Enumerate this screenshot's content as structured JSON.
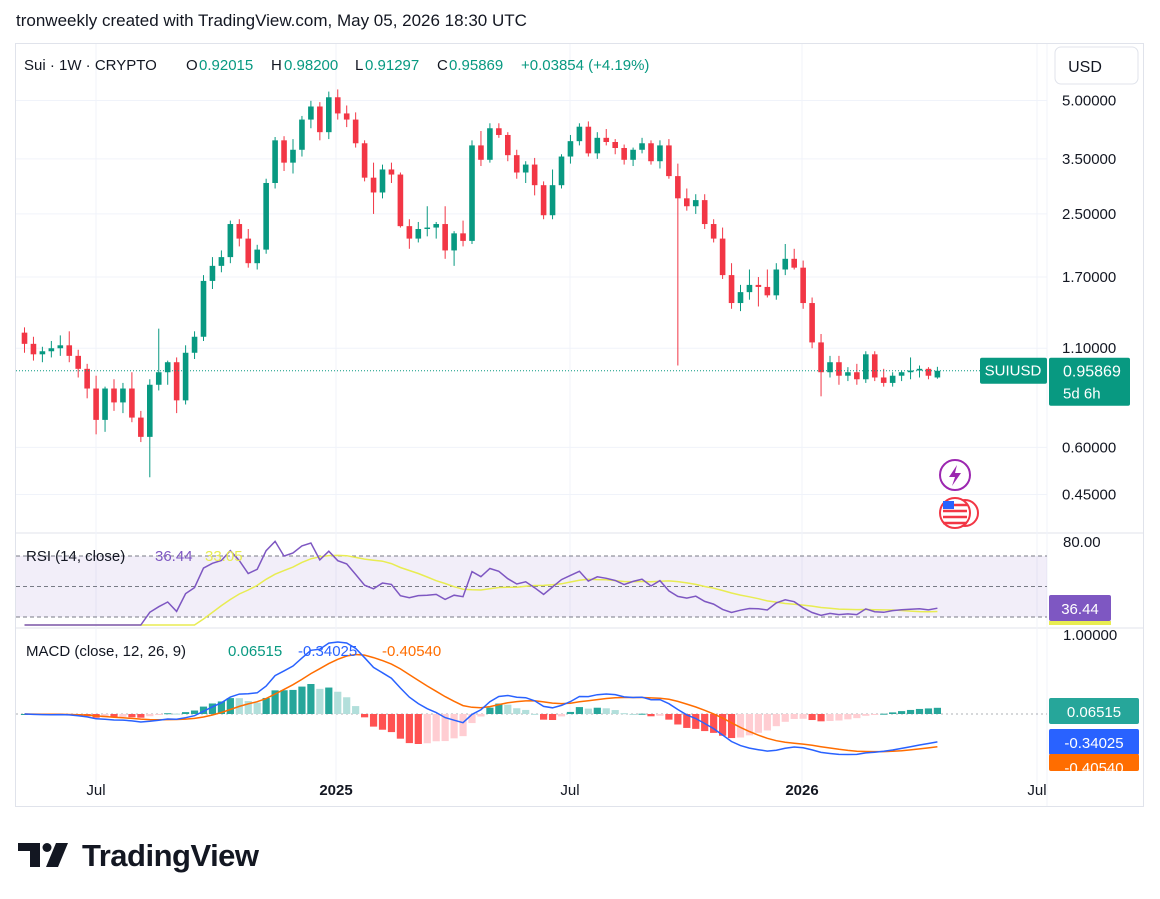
{
  "caption": "tronweekly created with TradingView.com, May 05, 2026 18:30 UTC",
  "header": {
    "symbol": "Sui · 1W · CRYPTO",
    "o_label": "O",
    "o_value": "0.92015",
    "h_label": "H",
    "h_value": "0.98200",
    "l_label": "L",
    "l_value": "0.91297",
    "c_label": "C",
    "c_value": "0.95869",
    "change": "+0.03854 (+4.19%)"
  },
  "currency_button": "USD",
  "price_axis": {
    "labels": [
      "5.00000",
      "3.50000",
      "2.50000",
      "1.70000",
      "1.10000",
      "0.60000",
      "0.45000"
    ],
    "values": [
      5.0,
      3.5,
      2.5,
      1.7,
      1.1,
      0.6,
      0.45
    ],
    "scale": "log"
  },
  "last_price_tag": {
    "symbol": "SUIUSD",
    "price": "0.95869",
    "countdown": "5d 6h"
  },
  "time_axis": [
    "Jul",
    "2025",
    "Jul",
    "2026",
    "Jul"
  ],
  "rsi": {
    "label": "RSI (14, close)",
    "value": "36.44",
    "ma_value": "33.05",
    "axis_label": "80.00",
    "tag": "36.44"
  },
  "macd": {
    "label": "MACD (close, 12, 26, 9)",
    "hist_value": "0.06515",
    "macd_value": "-0.34025",
    "signal_value": "-0.40540",
    "axis_label": "1.00000",
    "tags": [
      "0.06515",
      "-0.34025",
      "-0.40540"
    ]
  },
  "colors": {
    "up": "#089981",
    "down": "#f23645",
    "rsi_line": "#7e57c2",
    "rsi_ma": "#e8ec52",
    "macd_line": "#2962ff",
    "signal_line": "#ff6d00",
    "last_price": "#089981"
  },
  "icons": [
    "lightning-icon",
    "us-flag-icon"
  ],
  "brand": "TradingView",
  "chart_data": {
    "type": "candlestick",
    "title": "Sui · 1W · CRYPTO",
    "interval": "1W",
    "y_scale": "log",
    "x_start": "2024-04-29",
    "candles": [
      [
        1.21,
        1.25,
        1.07,
        1.13
      ],
      [
        1.13,
        1.18,
        1.02,
        1.06
      ],
      [
        1.06,
        1.11,
        1.01,
        1.08
      ],
      [
        1.08,
        1.15,
        1.04,
        1.1
      ],
      [
        1.1,
        1.19,
        1.05,
        1.12
      ],
      [
        1.12,
        1.22,
        1.01,
        1.05
      ],
      [
        1.05,
        1.09,
        0.92,
        0.97
      ],
      [
        0.97,
        1.0,
        0.81,
        0.86
      ],
      [
        0.86,
        0.93,
        0.65,
        0.71
      ],
      [
        0.71,
        0.87,
        0.66,
        0.86
      ],
      [
        0.86,
        0.91,
        0.75,
        0.79
      ],
      [
        0.79,
        0.89,
        0.74,
        0.86
      ],
      [
        0.86,
        0.95,
        0.7,
        0.72
      ],
      [
        0.72,
        0.75,
        0.62,
        0.64
      ],
      [
        0.64,
        0.91,
        0.5,
        0.88
      ],
      [
        0.88,
        1.24,
        0.85,
        0.95
      ],
      [
        0.95,
        1.02,
        0.88,
        1.01
      ],
      [
        1.01,
        1.04,
        0.74,
        0.8
      ],
      [
        0.8,
        1.12,
        0.78,
        1.07
      ],
      [
        1.07,
        1.22,
        1.03,
        1.18
      ],
      [
        1.18,
        1.72,
        1.15,
        1.66
      ],
      [
        1.66,
        1.92,
        1.58,
        1.82
      ],
      [
        1.82,
        2.0,
        1.75,
        1.92
      ],
      [
        1.92,
        2.4,
        1.85,
        2.35
      ],
      [
        2.35,
        2.42,
        2.05,
        2.15
      ],
      [
        2.15,
        2.28,
        1.8,
        1.85
      ],
      [
        1.85,
        2.07,
        1.78,
        2.01
      ],
      [
        2.01,
        3.1,
        1.96,
        3.02
      ],
      [
        3.02,
        4.0,
        2.92,
        3.92
      ],
      [
        3.92,
        4.02,
        3.25,
        3.42
      ],
      [
        3.42,
        3.95,
        3.2,
        3.7
      ],
      [
        3.7,
        4.55,
        3.55,
        4.45
      ],
      [
        4.45,
        4.99,
        4.22,
        4.82
      ],
      [
        4.82,
        4.95,
        3.92,
        4.12
      ],
      [
        4.12,
        5.28,
        3.95,
        5.1
      ],
      [
        5.1,
        5.35,
        4.45,
        4.62
      ],
      [
        4.62,
        4.85,
        4.25,
        4.45
      ],
      [
        4.45,
        4.65,
        3.75,
        3.85
      ],
      [
        3.85,
        3.92,
        3.05,
        3.12
      ],
      [
        3.12,
        3.42,
        2.5,
        2.85
      ],
      [
        2.85,
        3.38,
        2.75,
        3.28
      ],
      [
        3.28,
        3.42,
        3.02,
        3.18
      ],
      [
        3.18,
        3.22,
        2.3,
        2.32
      ],
      [
        2.32,
        2.42,
        2.02,
        2.15
      ],
      [
        2.15,
        2.38,
        2.1,
        2.28
      ],
      [
        2.28,
        2.62,
        2.18,
        2.3
      ],
      [
        2.3,
        2.38,
        2.15,
        2.35
      ],
      [
        2.35,
        2.62,
        1.9,
        2.0
      ],
      [
        2.0,
        2.25,
        1.82,
        2.22
      ],
      [
        2.22,
        2.4,
        2.05,
        2.12
      ],
      [
        2.12,
        3.92,
        2.08,
        3.8
      ],
      [
        3.8,
        4.15,
        3.35,
        3.48
      ],
      [
        3.48,
        4.35,
        3.42,
        4.22
      ],
      [
        4.22,
        4.35,
        3.98,
        4.05
      ],
      [
        4.05,
        4.12,
        3.45,
        3.58
      ],
      [
        3.58,
        3.7,
        3.1,
        3.22
      ],
      [
        3.22,
        3.45,
        3.02,
        3.38
      ],
      [
        3.38,
        3.52,
        2.8,
        2.98
      ],
      [
        2.98,
        3.05,
        2.42,
        2.48
      ],
      [
        2.48,
        3.28,
        2.42,
        2.98
      ],
      [
        2.98,
        3.6,
        2.92,
        3.55
      ],
      [
        3.55,
        4.05,
        3.4,
        3.9
      ],
      [
        3.9,
        4.35,
        3.8,
        4.26
      ],
      [
        4.26,
        4.4,
        3.55,
        3.62
      ],
      [
        3.62,
        4.12,
        3.5,
        3.98
      ],
      [
        3.98,
        4.2,
        3.8,
        3.88
      ],
      [
        3.88,
        3.95,
        3.6,
        3.74
      ],
      [
        3.74,
        3.82,
        3.38,
        3.48
      ],
      [
        3.48,
        3.75,
        3.35,
        3.7
      ],
      [
        3.7,
        3.98,
        3.62,
        3.85
      ],
      [
        3.85,
        3.92,
        3.38,
        3.45
      ],
      [
        3.45,
        3.92,
        3.3,
        3.8
      ],
      [
        3.8,
        3.95,
        3.1,
        3.15
      ],
      [
        3.15,
        3.4,
        0.99,
        2.75
      ],
      [
        2.75,
        2.92,
        2.55,
        2.62
      ],
      [
        2.62,
        2.82,
        2.5,
        2.72
      ],
      [
        2.72,
        2.82,
        2.28,
        2.35
      ],
      [
        2.35,
        2.42,
        2.1,
        2.15
      ],
      [
        2.15,
        2.3,
        1.68,
        1.72
      ],
      [
        1.72,
        1.85,
        1.4,
        1.45
      ],
      [
        1.45,
        1.62,
        1.38,
        1.55
      ],
      [
        1.55,
        1.78,
        1.48,
        1.62
      ],
      [
        1.62,
        1.7,
        1.42,
        1.6
      ],
      [
        1.6,
        1.78,
        1.5,
        1.52
      ],
      [
        1.52,
        1.85,
        1.48,
        1.78
      ],
      [
        1.78,
        2.08,
        1.72,
        1.9
      ],
      [
        1.9,
        2.02,
        1.78,
        1.8
      ],
      [
        1.8,
        1.88,
        1.4,
        1.45
      ],
      [
        1.45,
        1.5,
        1.1,
        1.14
      ],
      [
        1.14,
        1.2,
        0.82,
        0.95
      ],
      [
        0.95,
        1.05,
        0.92,
        1.01
      ],
      [
        1.01,
        1.05,
        0.88,
        0.93
      ],
      [
        0.93,
        0.98,
        0.9,
        0.95
      ],
      [
        0.95,
        1.0,
        0.88,
        0.91
      ],
      [
        0.91,
        1.08,
        0.89,
        1.06
      ],
      [
        1.06,
        1.08,
        0.9,
        0.92
      ],
      [
        0.92,
        0.97,
        0.87,
        0.89
      ],
      [
        0.89,
        0.95,
        0.87,
        0.93
      ],
      [
        0.93,
        0.96,
        0.9,
        0.95
      ],
      [
        0.95,
        1.04,
        0.91,
        0.96
      ],
      [
        0.96,
        0.99,
        0.92,
        0.97
      ],
      [
        0.97,
        0.98,
        0.91,
        0.93
      ],
      [
        0.92015,
        0.982,
        0.91297,
        0.95869
      ]
    ],
    "last_price": 0.95869,
    "y_ticks": [
      5.0,
      3.5,
      2.5,
      1.7,
      1.1,
      0.6,
      0.45
    ],
    "x_ticks": [
      "Jul",
      "2025",
      "Jul",
      "2026",
      "Jul"
    ],
    "rsi": {
      "period": 14,
      "value": 36.44,
      "ma": 33.05,
      "bands": [
        70,
        50,
        30
      ],
      "axis_tick": 80
    },
    "macd": {
      "fast": 12,
      "slow": 26,
      "signal": 9,
      "hist": 0.06515,
      "macd": -0.34025,
      "signal_value": -0.4054
    }
  }
}
